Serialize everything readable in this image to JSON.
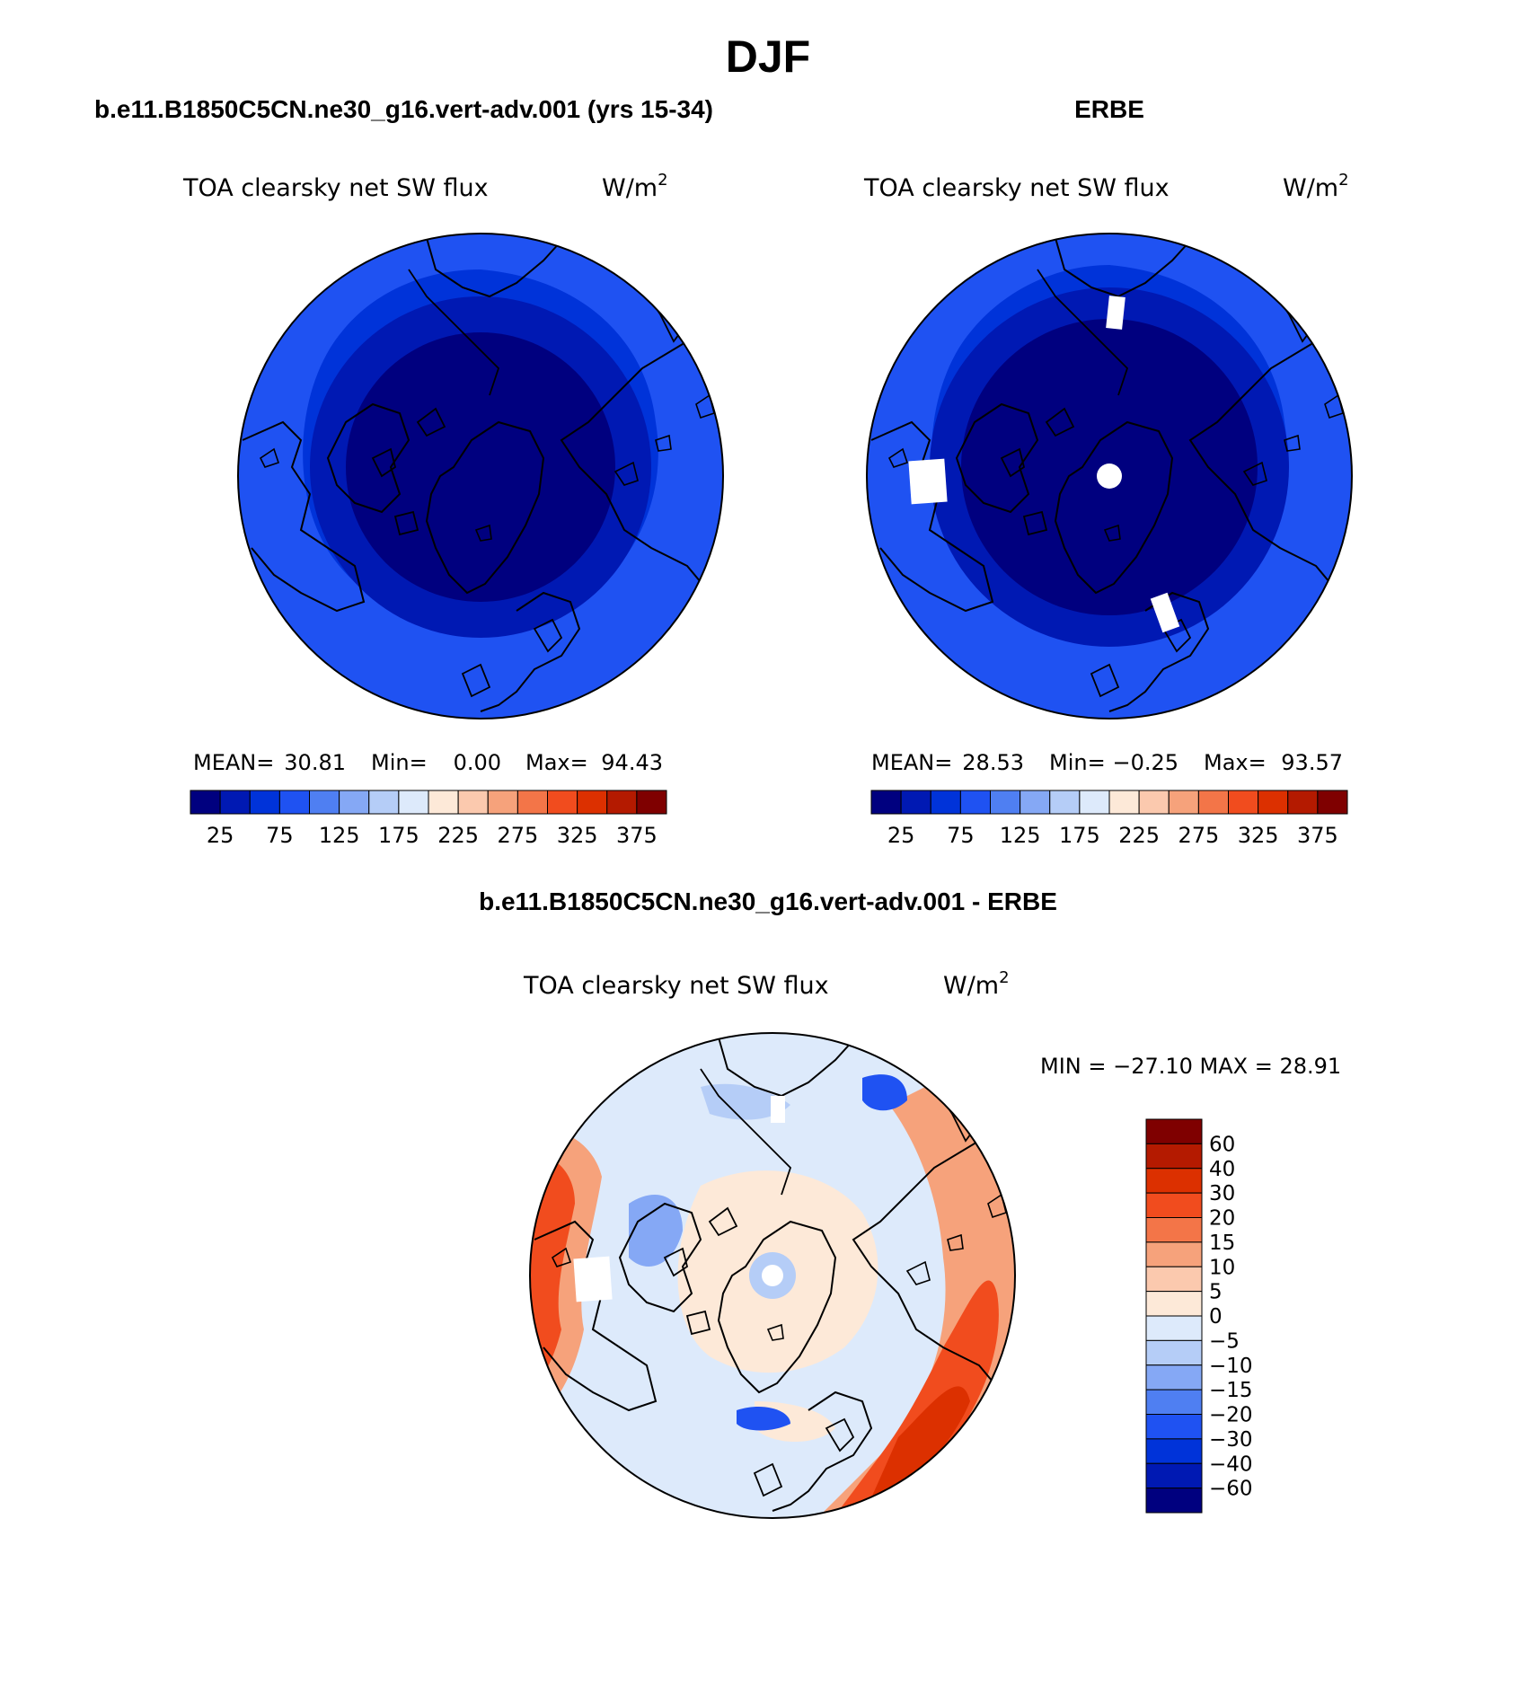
{
  "page": {
    "title": "DJF"
  },
  "panels": [
    {
      "id": "model",
      "header": "b.e11.B1850C5CN.ne30_g16.vert-adv.001 (yrs 15-34)",
      "variable": "TOA clearsky net SW flux",
      "units_base": "W/m",
      "units_exp": "2",
      "stats": {
        "mean_label": "MEAN=",
        "mean": "30.81",
        "min_label": "Min=",
        "min": "0.00",
        "max_label": "Max=",
        "max": "94.43"
      },
      "missing_patches": []
    },
    {
      "id": "obs",
      "header": "ERBE",
      "variable": "TOA clearsky net SW flux",
      "units_base": "W/m",
      "units_exp": "2",
      "stats": {
        "mean_label": "MEAN=",
        "mean": "28.53",
        "min_label": "Min=",
        "min": "−0.25",
        "max_label": "Max=",
        "max": "93.57"
      },
      "missing_patches": [
        "pole",
        "bering-strait",
        "hudson-region",
        "baltic-region"
      ]
    },
    {
      "id": "diff",
      "header": "b.e11.B1850C5CN.ne30_g16.vert-adv.001 - ERBE",
      "variable": "TOA clearsky net SW flux",
      "units_base": "W/m",
      "units_exp": "2",
      "stats": {
        "text": "MIN = −27.10 MAX =  28.91"
      }
    }
  ],
  "abs_colorbar": {
    "colors": [
      "#00007f",
      "#0019b3",
      "#0033d9",
      "#1f52f2",
      "#4f7ff2",
      "#85a8f5",
      "#b5cdf7",
      "#ddeafb",
      "#fde9d8",
      "#fbc9ae",
      "#f6a27b",
      "#f37548",
      "#f14c1e",
      "#dc3000",
      "#b41a00",
      "#7f0000"
    ],
    "tick_labels": [
      "25",
      "75",
      "125",
      "175",
      "225",
      "275",
      "325",
      "375"
    ]
  },
  "diff_colorbar": {
    "colors": [
      "#7f0000",
      "#b41a00",
      "#dc3000",
      "#f14c1e",
      "#f37548",
      "#f6a27b",
      "#fbc9ae",
      "#fde9d8",
      "#ddeafb",
      "#b5cdf7",
      "#85a8f5",
      "#4f7ff2",
      "#1f52f2",
      "#0033d9",
      "#0019b3",
      "#00007f"
    ],
    "tick_labels": [
      "60",
      "40",
      "30",
      "20",
      "15",
      "10",
      "5",
      "0",
      "−5",
      "−10",
      "−15",
      "−20",
      "−30",
      "−40",
      "−60"
    ]
  },
  "field_colors": {
    "rim": "#1f52f2",
    "ring": "#0033d9",
    "core": "#0019b3",
    "deep": "#00007f",
    "diff_base": "#ddeafb",
    "diff_pos_light": "#fde9d8",
    "diff_pos_mid": "#f6a27b",
    "diff_pos_strong": "#f14c1e",
    "diff_pos_max": "#dc3000",
    "diff_neg_light": "#b5cdf7",
    "diff_neg_mid": "#85a8f5",
    "diff_neg_strong": "#1f52f2"
  }
}
